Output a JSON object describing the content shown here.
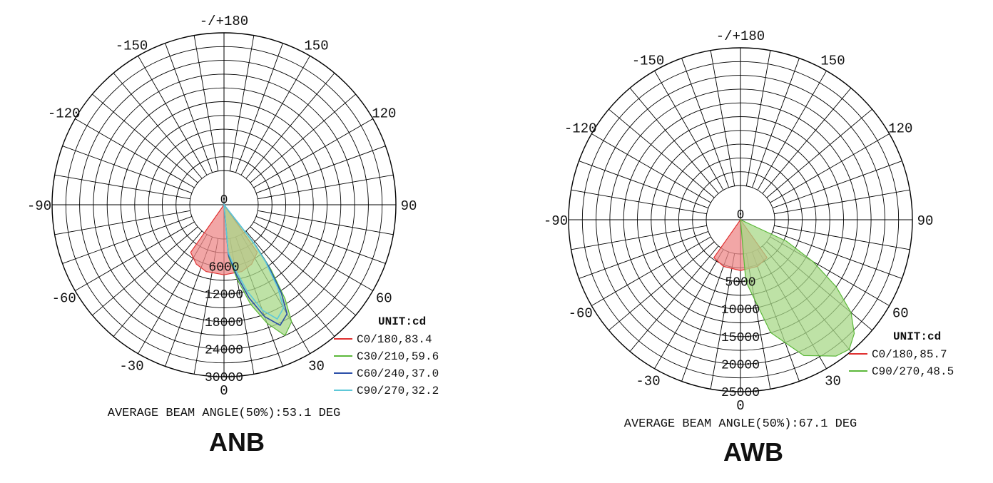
{
  "chart_data": [
    {
      "type": "polar",
      "title": "ANB",
      "angle_labels": [
        "-/+180",
        "150",
        "120",
        "90",
        "60",
        "30",
        "0",
        "-30",
        "-60",
        "-90",
        "-120",
        "-150"
      ],
      "center_label": "0",
      "radial_ticks": [
        "6000",
        "12000",
        "18000",
        "24000",
        "30000"
      ],
      "radial_max": 30000,
      "unit_label": "UNIT:cd",
      "footer": "AVERAGE BEAM ANGLE(50%):53.1 DEG",
      "series": [
        {
          "name": "C0/180,83.4",
          "color": "#e03030",
          "fill": "#ee8888",
          "angles": [
            -35,
            -25,
            -15,
            0,
            15,
            25,
            35
          ],
          "values": [
            5200,
            6800,
            7600,
            7800,
            7600,
            6800,
            5200
          ]
        },
        {
          "name": "C30/210,59.6",
          "color": "#5cb83a",
          "fill": "#a8d888",
          "angles": [
            5,
            10,
            15,
            20,
            25,
            30,
            33,
            36,
            38
          ],
          "values": [
            4000,
            9000,
            15000,
            20000,
            24000,
            22000,
            17000,
            10000,
            4000
          ]
        },
        {
          "name": "C60/240,37.0",
          "color": "#2b4fa8",
          "fill": null,
          "angles": [
            5,
            10,
            15,
            20,
            25,
            30,
            33,
            36,
            38
          ],
          "values": [
            3500,
            8000,
            13500,
            18500,
            21500,
            20000,
            15500,
            9000,
            3500
          ]
        },
        {
          "name": "C90/270,32.2",
          "color": "#5ec8d8",
          "fill": null,
          "angles": [
            5,
            10,
            15,
            20,
            25,
            30,
            33,
            36,
            38
          ],
          "values": [
            3000,
            7000,
            12000,
            17000,
            20000,
            18500,
            14000,
            8000,
            3000
          ]
        }
      ]
    },
    {
      "type": "polar",
      "title": "AWB",
      "angle_labels": [
        "-/+180",
        "150",
        "120",
        "90",
        "60",
        "30",
        "0",
        "-30",
        "-60",
        "-90",
        "-120",
        "-150"
      ],
      "center_label": "0",
      "radial_ticks": [
        "5000",
        "10000",
        "15000",
        "20000",
        "25000"
      ],
      "radial_max": 25000,
      "unit_label": "UNIT:cd",
      "footer": "AVERAGE BEAM ANGLE(50%):67.1 DEG",
      "series": [
        {
          "name": "C0/180,85.7",
          "color": "#e03030",
          "fill": "#ee8888",
          "angles": [
            -35,
            -20,
            0,
            20,
            35
          ],
          "values": [
            2200,
            2800,
            3000,
            2800,
            2200
          ]
        },
        {
          "name": "C90/270,48.5",
          "color": "#5cb83a",
          "fill": "#a8d888",
          "angles": [
            5,
            15,
            25,
            35,
            40,
            45,
            50,
            55,
            60,
            65
          ],
          "values": [
            5000,
            15000,
            21000,
            24000,
            24500,
            23000,
            20000,
            15000,
            9000,
            3000
          ]
        }
      ]
    }
  ]
}
